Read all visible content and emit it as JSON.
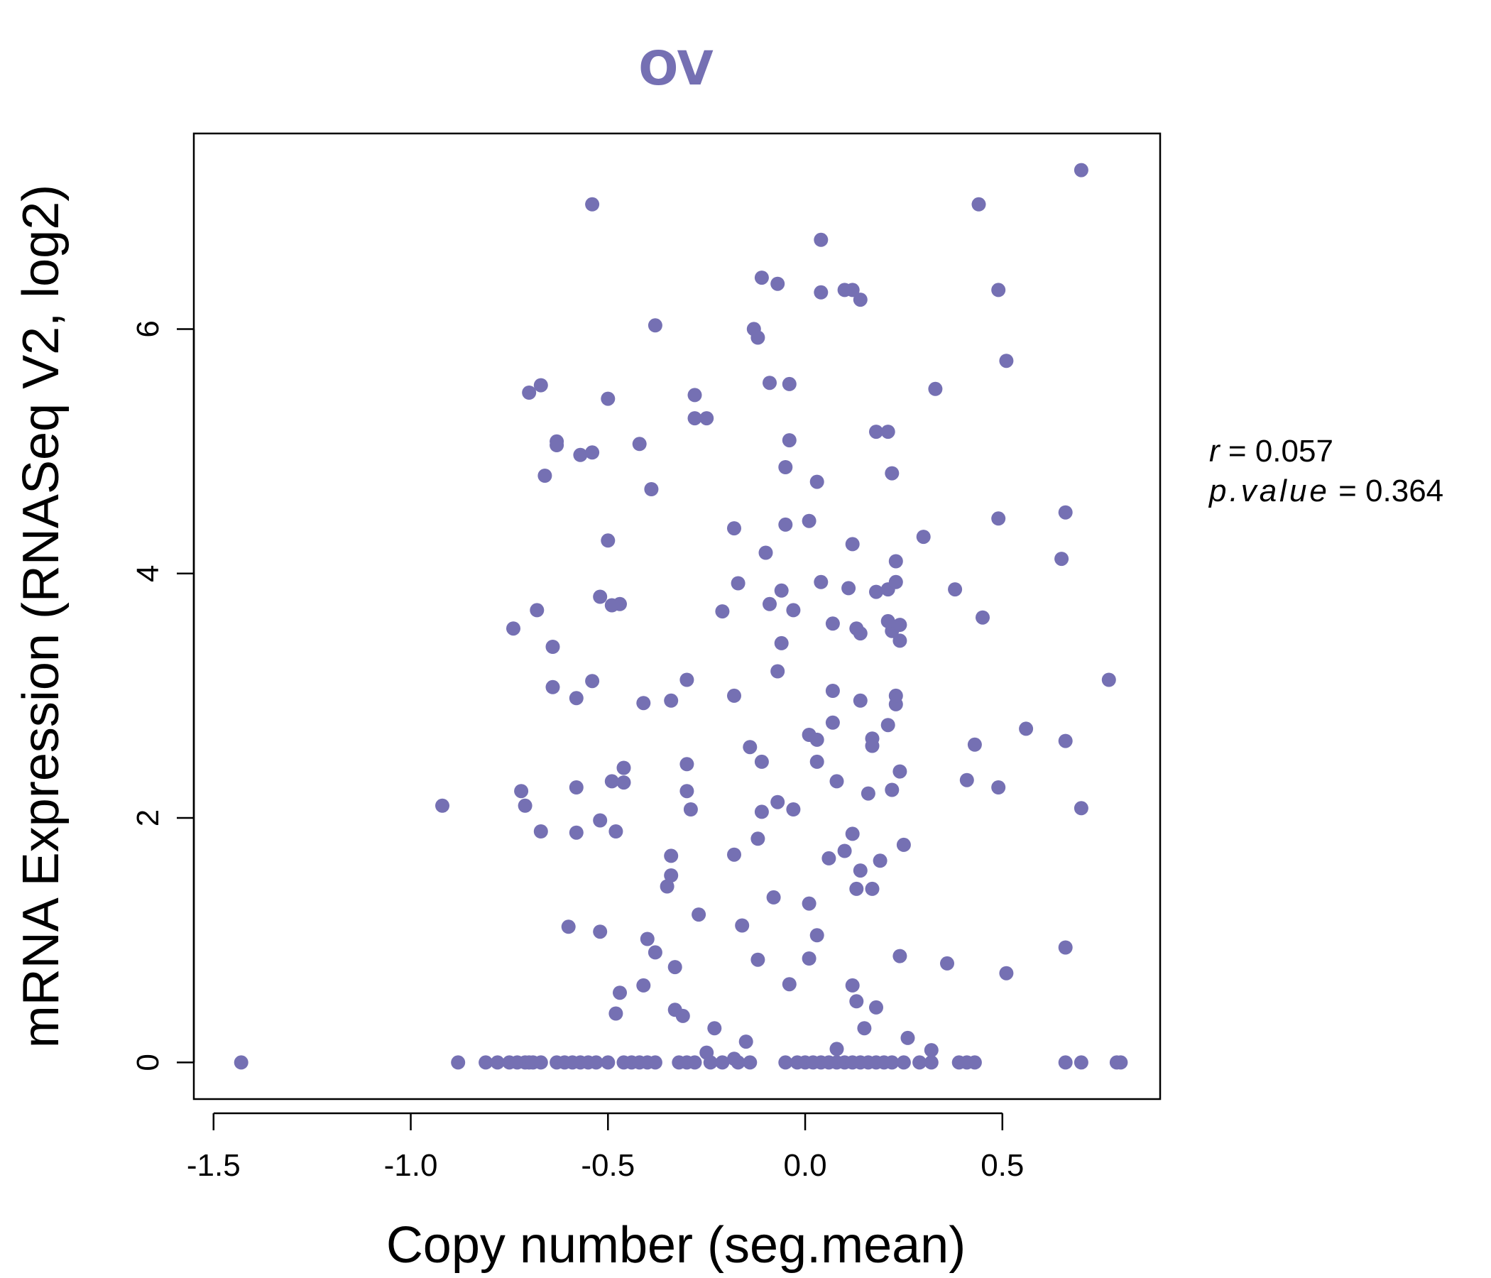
{
  "chart_data": {
    "type": "scatter",
    "title": "OV",
    "xlabel": "Copy number (seg.mean)",
    "ylabel": "mRNA Expression (RNASeq V2, log2)",
    "xlim": [
      -1.55,
      0.9
    ],
    "ylim": [
      -0.3,
      7.6
    ],
    "xticks": [
      -1.5,
      -1.0,
      -0.5,
      0.0,
      0.5
    ],
    "xtick_labels": [
      "-1.5",
      "-1.0",
      "-0.5",
      "0.0",
      "0.5"
    ],
    "yticks": [
      0,
      2,
      4,
      6
    ],
    "ytick_labels": [
      "0",
      "2",
      "4",
      "6"
    ],
    "grid": false,
    "point_color": "#7570b3",
    "stats": {
      "r_label": "r",
      "r_value": "0.057",
      "p_label": "p.value",
      "p_value": "0.364"
    },
    "points": [
      [
        -1.43,
        0
      ],
      [
        -0.88,
        0
      ],
      [
        -0.81,
        0
      ],
      [
        -0.78,
        0
      ],
      [
        -0.75,
        0
      ],
      [
        -0.73,
        0
      ],
      [
        -0.71,
        0
      ],
      [
        -0.7,
        0
      ],
      [
        -0.69,
        0
      ],
      [
        -0.67,
        0
      ],
      [
        -0.63,
        0
      ],
      [
        -0.61,
        0
      ],
      [
        -0.59,
        0
      ],
      [
        -0.57,
        0
      ],
      [
        -0.55,
        0
      ],
      [
        -0.53,
        0
      ],
      [
        -0.5,
        0
      ],
      [
        -0.46,
        0
      ],
      [
        -0.44,
        0
      ],
      [
        -0.42,
        0
      ],
      [
        -0.4,
        0
      ],
      [
        -0.38,
        0
      ],
      [
        -0.32,
        0
      ],
      [
        -0.3,
        0
      ],
      [
        -0.28,
        0
      ],
      [
        -0.24,
        0
      ],
      [
        -0.21,
        0
      ],
      [
        -0.17,
        0
      ],
      [
        -0.14,
        0
      ],
      [
        -0.05,
        0
      ],
      [
        -0.02,
        0
      ],
      [
        0.0,
        0
      ],
      [
        0.02,
        0
      ],
      [
        0.04,
        0
      ],
      [
        0.06,
        0
      ],
      [
        0.08,
        0
      ],
      [
        0.1,
        0
      ],
      [
        0.12,
        0
      ],
      [
        0.14,
        0
      ],
      [
        0.16,
        0
      ],
      [
        0.18,
        0
      ],
      [
        0.2,
        0
      ],
      [
        0.22,
        0
      ],
      [
        0.25,
        0
      ],
      [
        0.29,
        0
      ],
      [
        0.32,
        0
      ],
      [
        0.39,
        0
      ],
      [
        0.41,
        0
      ],
      [
        0.43,
        0
      ],
      [
        0.66,
        0
      ],
      [
        0.7,
        0
      ],
      [
        0.79,
        0
      ],
      [
        0.8,
        0
      ],
      [
        -0.25,
        0.08
      ],
      [
        -0.18,
        0.03
      ],
      [
        -0.15,
        0.17
      ],
      [
        0.08,
        0.11
      ],
      [
        0.26,
        0.2
      ],
      [
        0.32,
        0.1
      ],
      [
        -0.23,
        0.28
      ],
      [
        0.15,
        0.28
      ],
      [
        -0.31,
        0.38
      ],
      [
        -0.48,
        0.4
      ],
      [
        -0.33,
        0.43
      ],
      [
        0.18,
        0.45
      ],
      [
        0.13,
        0.5
      ],
      [
        -0.47,
        0.57
      ],
      [
        -0.41,
        0.63
      ],
      [
        0.12,
        0.63
      ],
      [
        -0.04,
        0.64
      ],
      [
        0.51,
        0.73
      ],
      [
        -0.33,
        0.78
      ],
      [
        0.36,
        0.81
      ],
      [
        -0.12,
        0.84
      ],
      [
        0.01,
        0.85
      ],
      [
        0.24,
        0.87
      ],
      [
        -0.38,
        0.9
      ],
      [
        0.66,
        0.94
      ],
      [
        -0.4,
        1.01
      ],
      [
        0.03,
        1.04
      ],
      [
        -0.52,
        1.07
      ],
      [
        -0.16,
        1.12
      ],
      [
        -0.6,
        1.11
      ],
      [
        -0.27,
        1.21
      ],
      [
        0.01,
        1.3
      ],
      [
        -0.08,
        1.35
      ],
      [
        -0.35,
        1.44
      ],
      [
        0.13,
        1.42
      ],
      [
        0.17,
        1.42
      ],
      [
        0.14,
        1.57
      ],
      [
        -0.34,
        1.53
      ],
      [
        -0.34,
        1.69
      ],
      [
        0.06,
        1.67
      ],
      [
        0.19,
        1.65
      ],
      [
        -0.18,
        1.7
      ],
      [
        0.1,
        1.73
      ],
      [
        0.25,
        1.78
      ],
      [
        -0.12,
        1.83
      ],
      [
        -0.67,
        1.89
      ],
      [
        -0.58,
        1.88
      ],
      [
        -0.48,
        1.89
      ],
      [
        0.12,
        1.87
      ],
      [
        -0.52,
        1.98
      ],
      [
        -0.92,
        2.1
      ],
      [
        -0.71,
        2.1
      ],
      [
        -0.29,
        2.07
      ],
      [
        -0.11,
        2.05
      ],
      [
        -0.03,
        2.07
      ],
      [
        0.7,
        2.08
      ],
      [
        -0.07,
        2.13
      ],
      [
        -0.72,
        2.22
      ],
      [
        -0.58,
        2.25
      ],
      [
        -0.3,
        2.22
      ],
      [
        0.16,
        2.2
      ],
      [
        0.22,
        2.23
      ],
      [
        0.49,
        2.25
      ],
      [
        -0.49,
        2.3
      ],
      [
        -0.46,
        2.29
      ],
      [
        0.08,
        2.3
      ],
      [
        0.41,
        2.31
      ],
      [
        -0.46,
        2.41
      ],
      [
        -0.3,
        2.44
      ],
      [
        -0.11,
        2.46
      ],
      [
        0.03,
        2.46
      ],
      [
        0.24,
        2.38
      ],
      [
        -0.14,
        2.58
      ],
      [
        0.17,
        2.59
      ],
      [
        0.43,
        2.6
      ],
      [
        0.17,
        2.65
      ],
      [
        0.01,
        2.68
      ],
      [
        0.03,
        2.64
      ],
      [
        0.66,
        2.63
      ],
      [
        0.56,
        2.73
      ],
      [
        0.07,
        2.78
      ],
      [
        0.21,
        2.76
      ],
      [
        -0.58,
        2.98
      ],
      [
        -0.41,
        2.94
      ],
      [
        -0.34,
        2.96
      ],
      [
        -0.18,
        3.0
      ],
      [
        0.14,
        2.96
      ],
      [
        0.23,
        2.93
      ],
      [
        0.23,
        3.0
      ],
      [
        -0.64,
        3.07
      ],
      [
        -0.54,
        3.12
      ],
      [
        -0.3,
        3.13
      ],
      [
        0.07,
        3.04
      ],
      [
        0.77,
        3.13
      ],
      [
        -0.07,
        3.2
      ],
      [
        -0.64,
        3.4
      ],
      [
        -0.06,
        3.43
      ],
      [
        0.24,
        3.45
      ],
      [
        -0.74,
        3.55
      ],
      [
        0.14,
        3.51
      ],
      [
        0.13,
        3.55
      ],
      [
        0.07,
        3.59
      ],
      [
        0.22,
        3.53
      ],
      [
        0.24,
        3.58
      ],
      [
        -0.68,
        3.7
      ],
      [
        -0.21,
        3.69
      ],
      [
        -0.03,
        3.7
      ],
      [
        0.21,
        3.61
      ],
      [
        -0.49,
        3.74
      ],
      [
        -0.47,
        3.75
      ],
      [
        -0.09,
        3.75
      ],
      [
        0.45,
        3.64
      ],
      [
        -0.52,
        3.81
      ],
      [
        -0.06,
        3.86
      ],
      [
        0.11,
        3.88
      ],
      [
        0.18,
        3.85
      ],
      [
        0.21,
        3.87
      ],
      [
        0.38,
        3.87
      ],
      [
        -0.17,
        3.92
      ],
      [
        0.04,
        3.93
      ],
      [
        0.23,
        3.93
      ],
      [
        -0.1,
        4.17
      ],
      [
        0.12,
        4.24
      ],
      [
        0.23,
        4.1
      ],
      [
        0.65,
        4.12
      ],
      [
        -0.5,
        4.27
      ],
      [
        0.3,
        4.3
      ],
      [
        -0.18,
        4.37
      ],
      [
        -0.05,
        4.4
      ],
      [
        0.01,
        4.43
      ],
      [
        0.49,
        4.45
      ],
      [
        0.66,
        4.5
      ],
      [
        -0.39,
        4.69
      ],
      [
        -0.66,
        4.8
      ],
      [
        0.03,
        4.75
      ],
      [
        0.22,
        4.82
      ],
      [
        -0.05,
        4.87
      ],
      [
        -0.57,
        4.97
      ],
      [
        -0.54,
        4.99
      ],
      [
        -0.42,
        5.06
      ],
      [
        -0.63,
        5.08
      ],
      [
        -0.63,
        5.05
      ],
      [
        -0.04,
        5.09
      ],
      [
        0.18,
        5.16
      ],
      [
        0.21,
        5.16
      ],
      [
        -0.28,
        5.27
      ],
      [
        -0.25,
        5.27
      ],
      [
        -0.5,
        5.43
      ],
      [
        -0.28,
        5.46
      ],
      [
        -0.7,
        5.48
      ],
      [
        -0.67,
        5.54
      ],
      [
        -0.09,
        5.56
      ],
      [
        -0.04,
        5.55
      ],
      [
        0.33,
        5.51
      ],
      [
        0.51,
        5.74
      ],
      [
        -0.12,
        5.93
      ],
      [
        -0.13,
        6.0
      ],
      [
        -0.38,
        6.03
      ],
      [
        0.14,
        6.24
      ],
      [
        0.04,
        6.3
      ],
      [
        0.1,
        6.32
      ],
      [
        0.12,
        6.32
      ],
      [
        0.49,
        6.32
      ],
      [
        -0.07,
        6.37
      ],
      [
        -0.11,
        6.42
      ],
      [
        0.04,
        6.73
      ],
      [
        -0.54,
        7.02
      ],
      [
        0.44,
        7.02
      ],
      [
        0.7,
        7.3
      ]
    ]
  }
}
